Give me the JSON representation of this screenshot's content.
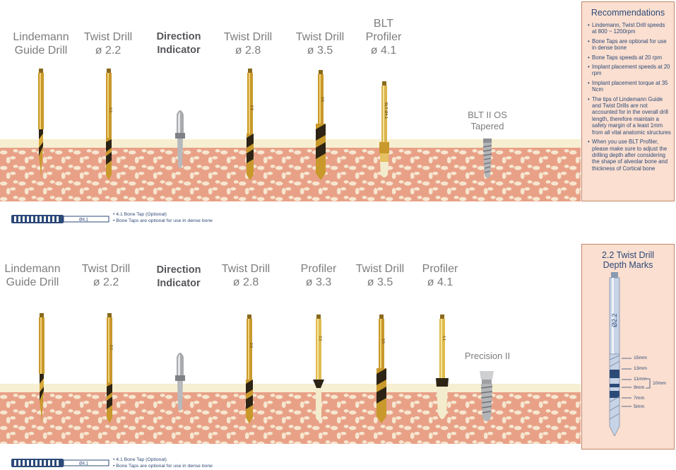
{
  "top_row": {
    "tools": [
      {
        "line1": "Lindemann",
        "line2": "Guide Drill"
      },
      {
        "line1": "Twist Drill",
        "line2": "ø 2.2"
      },
      {
        "line1": "Direction",
        "line2": "Indicator"
      },
      {
        "line1": "Twist Drill",
        "line2": "ø 2.8"
      },
      {
        "line1": "Twist Drill",
        "line2": "ø 3.5"
      },
      {
        "line1": "BLT",
        "line2": "Profiler",
        "line3": "ø 4.1"
      }
    ],
    "implant": {
      "line1": "BLT II OS",
      "line2": "Tapered"
    },
    "shaft_texts": [
      "2.2",
      "2.8",
      "3.5"
    ],
    "profiler_text": "BLT Ø4.1",
    "bone_tap": {
      "shaft_text": "Ø4.1",
      "note1": "4.1 Bone Tap  (Optional)",
      "note2": "Bone Taps are optional for use in dense bone"
    }
  },
  "bottom_row": {
    "tools": [
      {
        "line1": "Lindemann",
        "line2": "Guide Drill"
      },
      {
        "line1": "Twist Drill",
        "line2": "ø 2.2"
      },
      {
        "line1": "Direction",
        "line2": "Indicator"
      },
      {
        "line1": "Twist Drill",
        "line2": "ø 2.8"
      },
      {
        "line1": "Profiler",
        "line2": "ø 3.3"
      },
      {
        "line1": "Twist Drill",
        "line2": "ø 3.5"
      },
      {
        "line1": "Profiler",
        "line2": "ø 4.1"
      }
    ],
    "implant": {
      "line1": "Precision II"
    },
    "shaft_texts": [
      "2.2",
      "2.8",
      "3.3",
      "3.5",
      "4.1"
    ],
    "bone_tap": {
      "shaft_text": "Ø4.1",
      "note1": "4.1 Bone Tap  (Optional)",
      "note2": "Bone Taps are optional for use in dense bone"
    }
  },
  "recommendations": {
    "title": "Recommendations",
    "items": [
      "Lindemann, Twist Drill speeds at  800 ~ 1200rpm",
      "Bone Taps are optional for use in dense bone",
      "Bone Taps speeds at 20 rpm",
      "Implant placement speeds at 20 rpm",
      "Implant placement torque at 35 Ncm",
      "The tips of Lindemann Guide and Twist Drills are not accounted for in the overall drill length, therefore maintain a safety margin of a least 1mm from all vital anatomic structures",
      "When you use BLT Profiler, please make sure to adjust the drilling depth after considering the shape of alveolar bone and thickness of Cortical bone"
    ]
  },
  "depth_marks": {
    "title_line1": "2.2 Twist Drill",
    "title_line2": "Depth Marks",
    "shaft_text": "Ø2.2",
    "marks": [
      "15mm",
      "13mm",
      "11mm",
      "9mm",
      "7mm",
      "5mm"
    ],
    "bracket_label": "10mm"
  },
  "colors": {
    "gold": "#c9992c",
    "bone": "#e8a187",
    "cream": "#f7efd2",
    "panel": "#fbdfd0",
    "text_blue": "#2c4a78"
  }
}
